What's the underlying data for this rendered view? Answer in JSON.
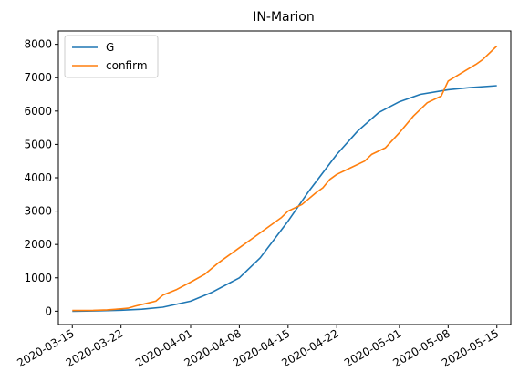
{
  "chart_data": {
    "type": "line",
    "title": "IN-Marion",
    "xlabel": "",
    "ylabel": "",
    "xlim": [
      "2020-03-13",
      "2020-05-17"
    ],
    "ylim": [
      -400,
      8400
    ],
    "grid": false,
    "legend_position": "top-left",
    "x_ticks": [
      "2020-03-15",
      "2020-03-22",
      "2020-04-01",
      "2020-04-08",
      "2020-04-15",
      "2020-04-22",
      "2020-05-01",
      "2020-05-08",
      "2020-05-15"
    ],
    "y_ticks": [
      0,
      1000,
      2000,
      3000,
      4000,
      5000,
      6000,
      7000,
      8000
    ],
    "series": [
      {
        "name": "G",
        "color": "#1f77b4",
        "points": [
          [
            "2020-03-15",
            0
          ],
          [
            "2020-03-18",
            8
          ],
          [
            "2020-03-22",
            30
          ],
          [
            "2020-03-25",
            60
          ],
          [
            "2020-03-28",
            120
          ],
          [
            "2020-04-01",
            300
          ],
          [
            "2020-04-04",
            560
          ],
          [
            "2020-04-08",
            1000
          ],
          [
            "2020-04-11",
            1600
          ],
          [
            "2020-04-15",
            2700
          ],
          [
            "2020-04-18",
            3600
          ],
          [
            "2020-04-22",
            4700
          ],
          [
            "2020-04-25",
            5400
          ],
          [
            "2020-04-28",
            5950
          ],
          [
            "2020-05-01",
            6280
          ],
          [
            "2020-05-04",
            6500
          ],
          [
            "2020-05-08",
            6640
          ],
          [
            "2020-05-11",
            6700
          ],
          [
            "2020-05-15",
            6760
          ]
        ]
      },
      {
        "name": "confirm",
        "color": "#ff7f0e",
        "points": [
          [
            "2020-03-15",
            20
          ],
          [
            "2020-03-18",
            25
          ],
          [
            "2020-03-20",
            40
          ],
          [
            "2020-03-22",
            70
          ],
          [
            "2020-03-23",
            90
          ],
          [
            "2020-03-24",
            150
          ],
          [
            "2020-03-26",
            250
          ],
          [
            "2020-03-27",
            300
          ],
          [
            "2020-03-28",
            480
          ],
          [
            "2020-03-30",
            650
          ],
          [
            "2020-04-01",
            870
          ],
          [
            "2020-04-03",
            1100
          ],
          [
            "2020-04-05",
            1450
          ],
          [
            "2020-04-08",
            1900
          ],
          [
            "2020-04-10",
            2200
          ],
          [
            "2020-04-12",
            2500
          ],
          [
            "2020-04-14",
            2800
          ],
          [
            "2020-04-15",
            3000
          ],
          [
            "2020-04-17",
            3200
          ],
          [
            "2020-04-19",
            3550
          ],
          [
            "2020-04-20",
            3700
          ],
          [
            "2020-04-21",
            3950
          ],
          [
            "2020-04-22",
            4100
          ],
          [
            "2020-04-24",
            4300
          ],
          [
            "2020-04-26",
            4500
          ],
          [
            "2020-04-27",
            4700
          ],
          [
            "2020-04-29",
            4900
          ],
          [
            "2020-05-01",
            5350
          ],
          [
            "2020-05-03",
            5850
          ],
          [
            "2020-05-05",
            6250
          ],
          [
            "2020-05-07",
            6450
          ],
          [
            "2020-05-08",
            6900
          ],
          [
            "2020-05-10",
            7150
          ],
          [
            "2020-05-12",
            7400
          ],
          [
            "2020-05-13",
            7550
          ],
          [
            "2020-05-15",
            7950
          ]
        ]
      }
    ]
  }
}
